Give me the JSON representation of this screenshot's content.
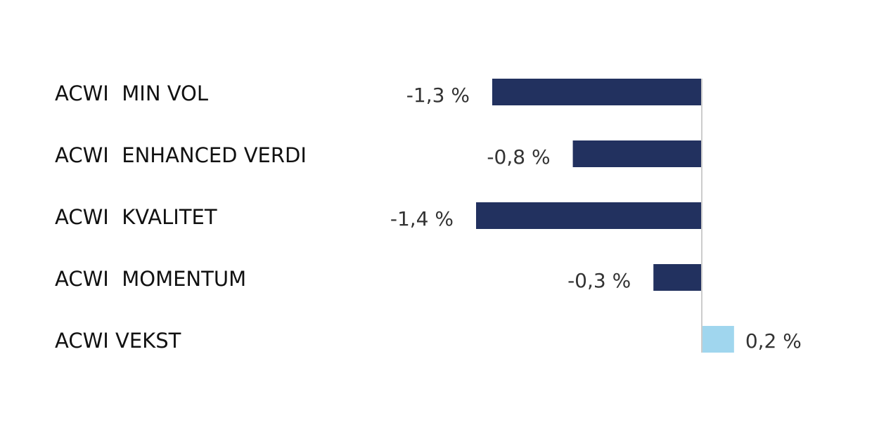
{
  "chart_data": {
    "type": "barh",
    "categories": [
      "ACWI  MIN VOL",
      "ACWI  ENHANCED VERDI",
      "ACWI  KVALITET",
      "ACWI  MOMENTUM",
      "ACWI VEKST"
    ],
    "values": [
      -1.3,
      -0.8,
      -1.4,
      -0.3,
      0.2
    ],
    "value_labels": [
      "-1,3 %",
      "-0,8 %",
      "-1,4 %",
      "-0,3 %",
      "0,2 %"
    ],
    "colors": [
      "#22315f",
      "#22315f",
      "#22315f",
      "#22315f",
      "#a0d6ee"
    ]
  }
}
